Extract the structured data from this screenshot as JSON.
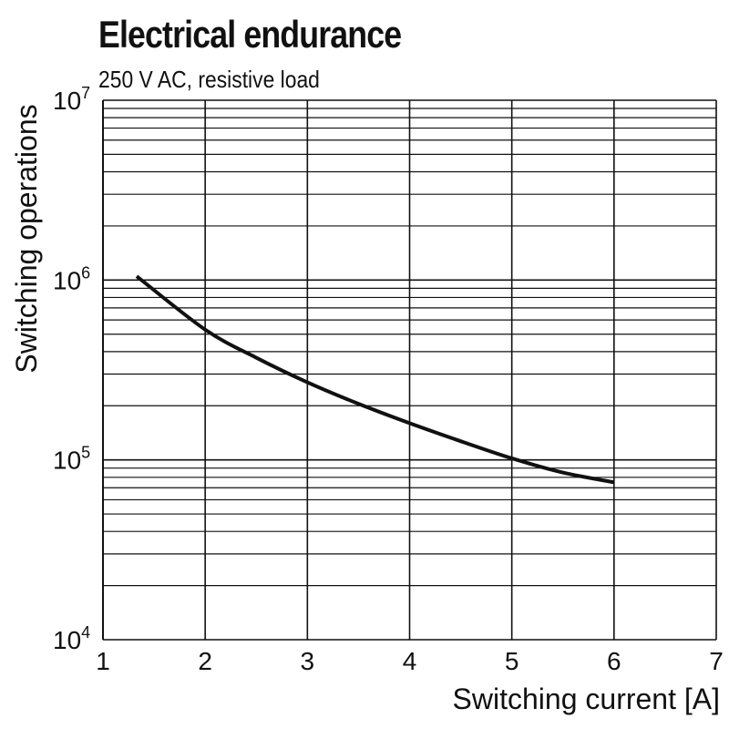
{
  "chart_data": {
    "type": "line",
    "title": "Electrical endurance",
    "subtitle": "250 V AC, resistive load",
    "xlabel": "Switching current [A]",
    "ylabel": "Switching operations",
    "xlim": [
      1,
      7
    ],
    "ylim": [
      10000,
      10000000
    ],
    "yscale": "log",
    "grid": true,
    "xticks": [
      "1",
      "2",
      "3",
      "4",
      "5",
      "6",
      "7"
    ],
    "yticks": [
      {
        "base": "10",
        "exp": "4"
      },
      {
        "base": "10",
        "exp": "5"
      },
      {
        "base": "10",
        "exp": "6"
      },
      {
        "base": "10",
        "exp": "7"
      }
    ],
    "series": [
      {
        "x": [
          1.33,
          2,
          2.5,
          3,
          3.5,
          4,
          4.5,
          5,
          5.5,
          6
        ],
        "y": [
          1050000,
          530000,
          370000,
          270000,
          205000,
          160000,
          127000,
          102000,
          85000,
          75000
        ],
        "color": "#111111"
      }
    ]
  }
}
